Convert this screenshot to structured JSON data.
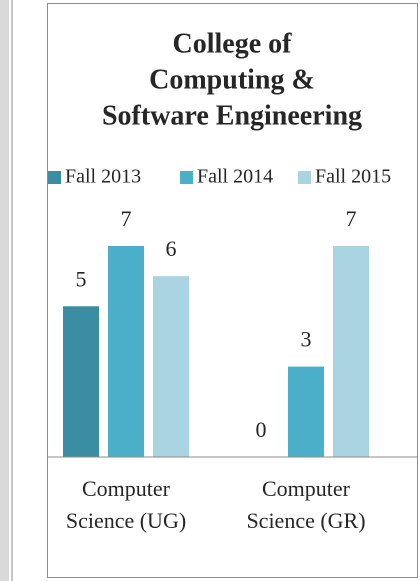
{
  "chart_data": {
    "type": "bar",
    "title": [
      "College of",
      "Computing &",
      "Software Engineering"
    ],
    "categories": [
      "Computer Science (UG)",
      "Computer Science (GR)"
    ],
    "series": [
      {
        "name": "Fall 2013",
        "color": "#3a8da2",
        "values": [
          5,
          0
        ]
      },
      {
        "name": "Fall 2014",
        "color": "#4bafc9",
        "values": [
          7,
          3
        ]
      },
      {
        "name": "Fall 2015",
        "color": "#a9d3e0",
        "values": [
          6,
          7
        ]
      }
    ],
    "ylim": [
      0,
      7
    ],
    "legend": "top"
  }
}
